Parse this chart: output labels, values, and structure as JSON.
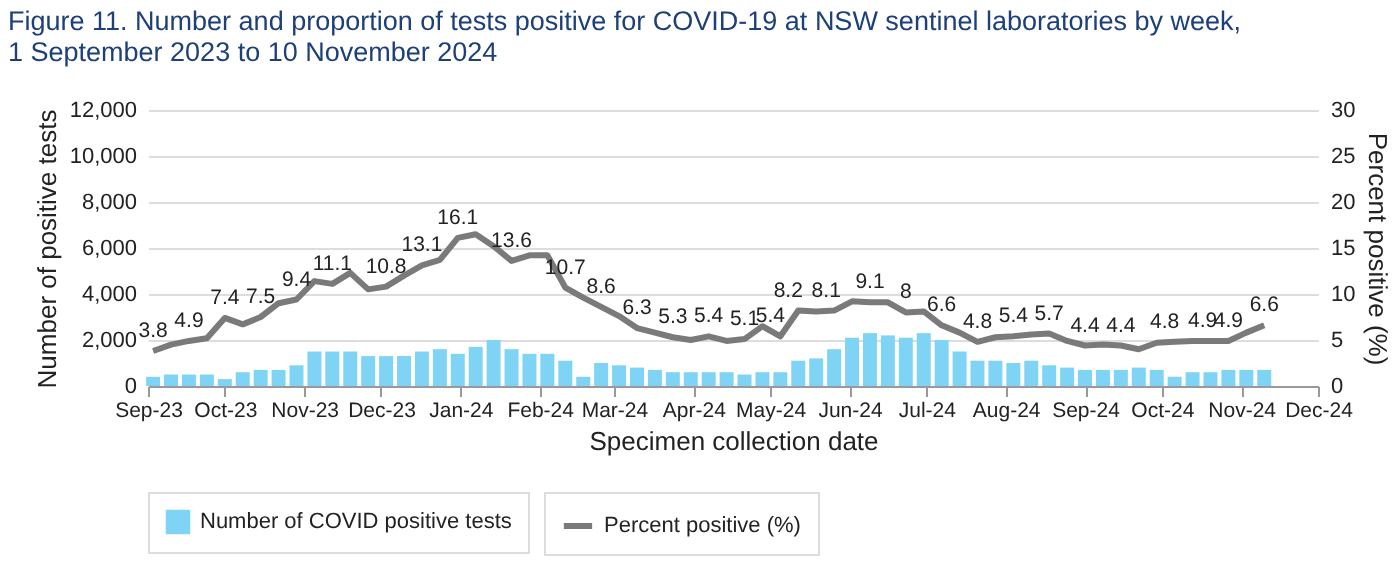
{
  "chart_data": {
    "type": "bar",
    "title": "Figure 11. Number and proportion of tests positive for COVID-19 at NSW sentinel laboratories by week,\n1 September 2023 to 10 November 2024",
    "xlabel": "Specimen collection date",
    "ylabel": "Number of positive tests",
    "y2label": "Percent positive (%)",
    "x": [
      "2023-09-03",
      "2023-09-10",
      "2023-09-17",
      "2023-09-24",
      "2023-10-01",
      "2023-10-08",
      "2023-10-15",
      "2023-10-22",
      "2023-10-29",
      "2023-11-05",
      "2023-11-12",
      "2023-11-19",
      "2023-11-26",
      "2023-12-03",
      "2023-12-10",
      "2023-12-17",
      "2023-12-24",
      "2023-12-31",
      "2024-01-07",
      "2024-01-14",
      "2024-01-21",
      "2024-01-28",
      "2024-02-04",
      "2024-02-11",
      "2024-02-18",
      "2024-02-25",
      "2024-03-03",
      "2024-03-10",
      "2024-03-17",
      "2024-03-24",
      "2024-03-31",
      "2024-04-07",
      "2024-04-14",
      "2024-04-21",
      "2024-04-28",
      "2024-05-05",
      "2024-05-12",
      "2024-05-19",
      "2024-05-26",
      "2024-06-02",
      "2024-06-09",
      "2024-06-16",
      "2024-06-23",
      "2024-06-30",
      "2024-07-07",
      "2024-07-14",
      "2024-07-21",
      "2024-07-28",
      "2024-08-04",
      "2024-08-11",
      "2024-08-18",
      "2024-08-25",
      "2024-09-01",
      "2024-09-08",
      "2024-09-15",
      "2024-09-22",
      "2024-09-29",
      "2024-10-06",
      "2024-10-13",
      "2024-10-20",
      "2024-10-27",
      "2024-11-03",
      "2024-11-10"
    ],
    "series": [
      {
        "name": "Number of COVID positive tests",
        "color": "#7fd4f5",
        "values": [
          400,
          500,
          500,
          500,
          300,
          600,
          700,
          700,
          900,
          1500,
          1500,
          1500,
          1300,
          1300,
          1300,
          1500,
          1600,
          1400,
          1700,
          2000,
          1600,
          1400,
          1400,
          1100,
          400,
          1000,
          900,
          800,
          700,
          600,
          600,
          600,
          600,
          500,
          600,
          600,
          1100,
          1200,
          1600,
          2100,
          2300,
          2200,
          2100,
          2300,
          2000,
          1500,
          1100,
          1100,
          1000,
          1100,
          900,
          800,
          700,
          700,
          700,
          800,
          700,
          400,
          600,
          600,
          700,
          700,
          700
        ]
      },
      {
        "name": "Percent positive (%)",
        "type": "line",
        "axis": "y2",
        "color": "#7a7a7a",
        "values": [
          3.8,
          4.5,
          4.9,
          5.2,
          7.4,
          6.7,
          7.5,
          9.0,
          9.4,
          11.4,
          11.1,
          12.3,
          10.5,
          10.8,
          12.0,
          13.1,
          13.7,
          16.1,
          16.5,
          15.2,
          13.6,
          14.2,
          14.2,
          10.7,
          9.6,
          8.6,
          7.6,
          6.3,
          5.8,
          5.3,
          5.0,
          5.4,
          4.9,
          5.1,
          6.5,
          5.4,
          8.2,
          8.1,
          8.2,
          9.2,
          9.1,
          9.1,
          8,
          8.1,
          6.6,
          5.8,
          4.8,
          5.3,
          5.4,
          5.6,
          5.7,
          4.9,
          4.4,
          4.5,
          4.4,
          4.0,
          4.7,
          4.8,
          4.9,
          4.9,
          4.9,
          5.8,
          6.6
        ],
        "value_labels": [
          "3.8",
          null,
          "4.9",
          null,
          "7.4",
          null,
          "7.5",
          null,
          "9.4",
          null,
          "11.1",
          null,
          null,
          "10.8",
          null,
          "13.1",
          null,
          "16.1",
          null,
          null,
          "13.6",
          null,
          null,
          "10.7",
          null,
          "8.6",
          null,
          "6.3",
          null,
          "5.3",
          null,
          "5.4",
          null,
          "5.1",
          null,
          "5.4",
          "8.2",
          "8.1",
          null,
          null,
          "9.1",
          null,
          "8",
          null,
          "6.6",
          null,
          "4.8",
          null,
          "5.4",
          null,
          "5.7",
          null,
          "4.4",
          null,
          "4.4",
          null,
          null,
          "4.8",
          "4.9",
          null,
          "4.9",
          null,
          "6.6"
        ]
      }
    ],
    "xlim": [
      "2023-09-01",
      "2024-12-01"
    ],
    "xticks": [
      {
        "value": "2023-09-01",
        "label": "Sep-23"
      },
      {
        "value": "2023-10-01",
        "label": "Oct-23"
      },
      {
        "value": "2023-11-01",
        "label": "Nov-23"
      },
      {
        "value": "2023-12-01",
        "label": "Dec-23"
      },
      {
        "value": "2024-01-01",
        "label": "Jan-24"
      },
      {
        "value": "2024-02-01",
        "label": "Feb-24"
      },
      {
        "value": "2024-03-01",
        "label": "Mar-24"
      },
      {
        "value": "2024-04-01",
        "label": "Apr-24"
      },
      {
        "value": "2024-05-01",
        "label": "May-24"
      },
      {
        "value": "2024-06-01",
        "label": "Jun-24"
      },
      {
        "value": "2024-07-01",
        "label": "Jul-24"
      },
      {
        "value": "2024-08-01",
        "label": "Aug-24"
      },
      {
        "value": "2024-09-01",
        "label": "Sep-24"
      },
      {
        "value": "2024-10-01",
        "label": "Oct-24"
      },
      {
        "value": "2024-11-01",
        "label": "Nov-24"
      },
      {
        "value": "2024-12-01",
        "label": "Dec-24"
      }
    ],
    "ylim": [
      0,
      12000
    ],
    "yticks": [
      0,
      {
        "value": 2000,
        "label": "2,000"
      },
      {
        "value": 4000,
        "label": "4,000"
      },
      {
        "value": 6000,
        "label": "6,000"
      },
      {
        "value": 8000,
        "label": "8,000"
      },
      {
        "value": 10000,
        "label": "10,000"
      },
      {
        "value": 12000,
        "label": "12,000"
      }
    ],
    "y2lim": [
      0,
      30
    ],
    "y2ticks": [
      0,
      5,
      10,
      15,
      20,
      25,
      30
    ],
    "grid": "y",
    "legend": "bottom"
  }
}
